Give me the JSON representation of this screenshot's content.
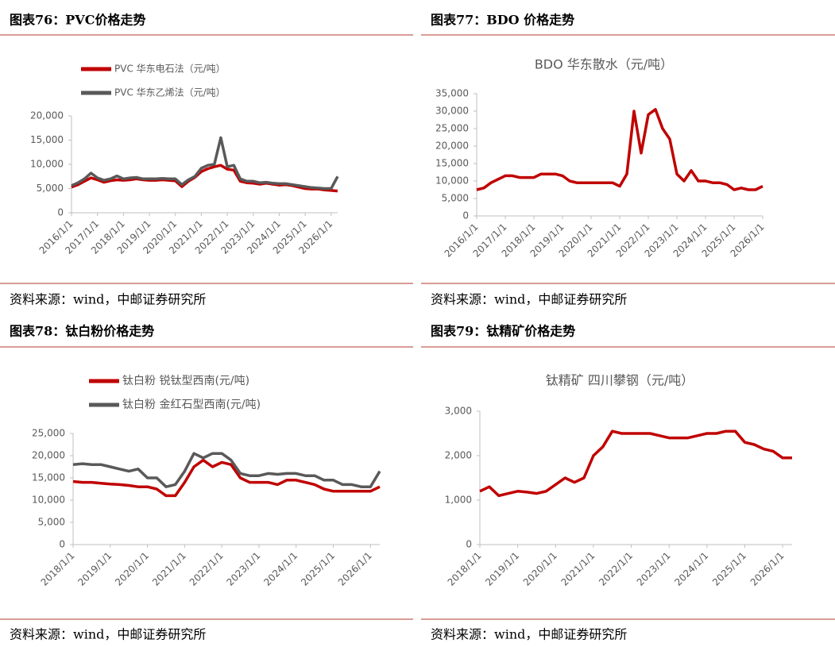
{
  "panels": [
    {
      "header": "图表76：PVC价格走势",
      "source": "资料来源：wind，中邮证券研究所",
      "chart_data": {
        "type": "line",
        "legend": "top",
        "categories": [
          "2016/1/1",
          null,
          null,
          null,
          "2017/1/1",
          null,
          null,
          null,
          "2018/1/1",
          null,
          null,
          null,
          "2019/1/1",
          null,
          null,
          null,
          "2020/1/1",
          null,
          null,
          null,
          "2021/1/1",
          null,
          null,
          null,
          "2022/1/1",
          null,
          null,
          null,
          "2023/1/1",
          null,
          null,
          null,
          "2024/1/1",
          null,
          null,
          null,
          "2025/1/1",
          null,
          null,
          null,
          "2026/1/1",
          null
        ],
        "series": [
          {
            "name": "PVC 华东电石法（元/吨）",
            "color": "#c00000",
            "values": [
              5300,
              5800,
              6500,
              7200,
              6800,
              6300,
              6600,
              6800,
              6700,
              6800,
              7000,
              6800,
              6700,
              6700,
              6800,
              6700,
              6600,
              5400,
              6500,
              7300,
              8500,
              9100,
              9500,
              9800,
              9000,
              8800,
              6500,
              6200,
              6100,
              5900,
              6100,
              5900,
              5700,
              5800,
              5600,
              5300,
              5000,
              4900,
              4900,
              4700,
              4600,
              4500
            ]
          },
          {
            "name": "PVC 华东乙烯法（元/吨）",
            "color": "#595959",
            "values": [
              5600,
              6200,
              7000,
              8200,
              7200,
              6700,
              7000,
              7600,
              7000,
              7200,
              7300,
              7000,
              7000,
              7000,
              7100,
              7000,
              7000,
              5800,
              6800,
              7500,
              9200,
              9800,
              10000,
              15500,
              9500,
              9800,
              7000,
              6500,
              6500,
              6200,
              6300,
              6100,
              6000,
              6000,
              5800,
              5600,
              5400,
              5200,
              5100,
              5000,
              5000,
              7500
            ]
          }
        ],
        "ylim": [
          0,
          20000
        ],
        "yticks": [
          0,
          {
            "value": 5000,
            "label": "5,000"
          },
          {
            "value": 10000,
            "label": "10,000"
          },
          {
            "value": 15000,
            "label": "15,000"
          },
          {
            "value": 20000,
            "label": "20,000"
          }
        ]
      }
    },
    {
      "header": "图表77：BDO 价格走势",
      "source": "资料来源：wind，中邮证券研究所",
      "chart_data": {
        "type": "line",
        "title": "BDO 华东散水（元/吨）",
        "categories": [
          "2016/1/1",
          null,
          null,
          null,
          "2017/1/1",
          null,
          null,
          null,
          "2018/1/1",
          null,
          null,
          null,
          "2019/1/1",
          null,
          null,
          null,
          "2020/1/1",
          null,
          null,
          null,
          "2021/1/1",
          null,
          null,
          null,
          "2022/1/1",
          null,
          null,
          null,
          "2023/1/1",
          null,
          null,
          null,
          "2024/1/1",
          null,
          null,
          null,
          "2025/1/1",
          null,
          null,
          null,
          "2026/1/1"
        ],
        "color": "#c00000",
        "values": [
          7500,
          8000,
          9500,
          10500,
          11500,
          11500,
          11000,
          11000,
          11000,
          12000,
          12000,
          12000,
          11500,
          10000,
          9500,
          9500,
          9500,
          9500,
          9500,
          9500,
          8500,
          12000,
          30000,
          18000,
          29000,
          30500,
          25000,
          22000,
          12000,
          10000,
          13000,
          10000,
          10000,
          9500,
          9500,
          9000,
          7500,
          8000,
          7500,
          7500,
          8500
        ],
        "ylim": [
          0,
          35000
        ],
        "yticks": [
          0,
          {
            "value": 5000,
            "label": "5,000"
          },
          {
            "value": 10000,
            "label": "10,000"
          },
          {
            "value": 15000,
            "label": "15,000"
          },
          {
            "value": 20000,
            "label": "20,000"
          },
          {
            "value": 25000,
            "label": "25,000"
          },
          {
            "value": 30000,
            "label": "30,000"
          },
          {
            "value": 35000,
            "label": "35,000"
          }
        ]
      }
    },
    {
      "header": "图表78：钛白粉价格走势",
      "source": "资料来源：wind，中邮证券研究所",
      "chart_data": {
        "type": "line",
        "legend": "top",
        "categories": [
          "2018/1/1",
          null,
          null,
          null,
          "2019/1/1",
          null,
          null,
          null,
          "2020/1/1",
          null,
          null,
          null,
          "2021/1/1",
          null,
          null,
          null,
          "2022/1/1",
          null,
          null,
          null,
          "2023/1/1",
          null,
          null,
          null,
          "2024/1/1",
          null,
          null,
          null,
          "2025/1/1",
          null,
          null,
          null,
          "2026/1/1",
          null
        ],
        "series": [
          {
            "name": "钛白粉 锐钛型西南(元/吨)",
            "color": "#c00000",
            "values": [
              14200,
              14000,
              14000,
              13800,
              13600,
              13500,
              13300,
              13000,
              13000,
              12500,
              11000,
              11000,
              14000,
              17500,
              19000,
              17500,
              18500,
              18000,
              15000,
              14000,
              14000,
              14000,
              13500,
              14500,
              14500,
              14000,
              13500,
              12500,
              12000,
              12000,
              12000,
              12000,
              12000,
              13000
            ]
          },
          {
            "name": "钛白粉 金红石型西南(元/吨)",
            "color": "#595959",
            "values": [
              18000,
              18200,
              18000,
              18000,
              17500,
              17000,
              16500,
              17000,
              15000,
              15000,
              13000,
              13500,
              16500,
              20500,
              19500,
              20500,
              20500,
              19000,
              16000,
              15500,
              15500,
              16000,
              15800,
              16000,
              16000,
              15500,
              15500,
              14500,
              14500,
              13500,
              13500,
              13000,
              13000,
              16500
            ]
          }
        ],
        "ylim": [
          0,
          25000
        ],
        "yticks": [
          0,
          {
            "value": 5000,
            "label": "5,000"
          },
          {
            "value": 10000,
            "label": "10,000"
          },
          {
            "value": 15000,
            "label": "15,000"
          },
          {
            "value": 20000,
            "label": "20,000"
          },
          {
            "value": 25000,
            "label": "25,000"
          }
        ]
      }
    },
    {
      "header": "图表79：钛精矿价格走势",
      "source": "资料来源：wind，中邮证券研究所",
      "chart_data": {
        "type": "line",
        "title": "钛精矿 四川攀钢（元/吨）",
        "categories": [
          "2018/1/1",
          null,
          null,
          null,
          "2019/1/1",
          null,
          null,
          null,
          "2020/1/1",
          null,
          null,
          null,
          "2021/1/1",
          null,
          null,
          null,
          "2022/1/1",
          null,
          null,
          null,
          "2023/1/1",
          null,
          null,
          null,
          "2024/1/1",
          null,
          null,
          null,
          "2025/1/1",
          null,
          null,
          null,
          "2026/1/1",
          null
        ],
        "color": "#c00000",
        "values": [
          1200,
          1300,
          1100,
          1150,
          1200,
          1180,
          1150,
          1200,
          1350,
          1500,
          1400,
          1500,
          2000,
          2200,
          2550,
          2500,
          2500,
          2500,
          2500,
          2450,
          2400,
          2400,
          2400,
          2450,
          2500,
          2500,
          2550,
          2550,
          2300,
          2250,
          2150,
          2100,
          1950,
          1950
        ],
        "ylim": [
          0,
          3000
        ],
        "yticks": [
          0,
          {
            "value": 1000,
            "label": "1,000"
          },
          {
            "value": 2000,
            "label": "2,000"
          },
          {
            "value": 3000,
            "label": "3,000"
          }
        ]
      }
    }
  ]
}
